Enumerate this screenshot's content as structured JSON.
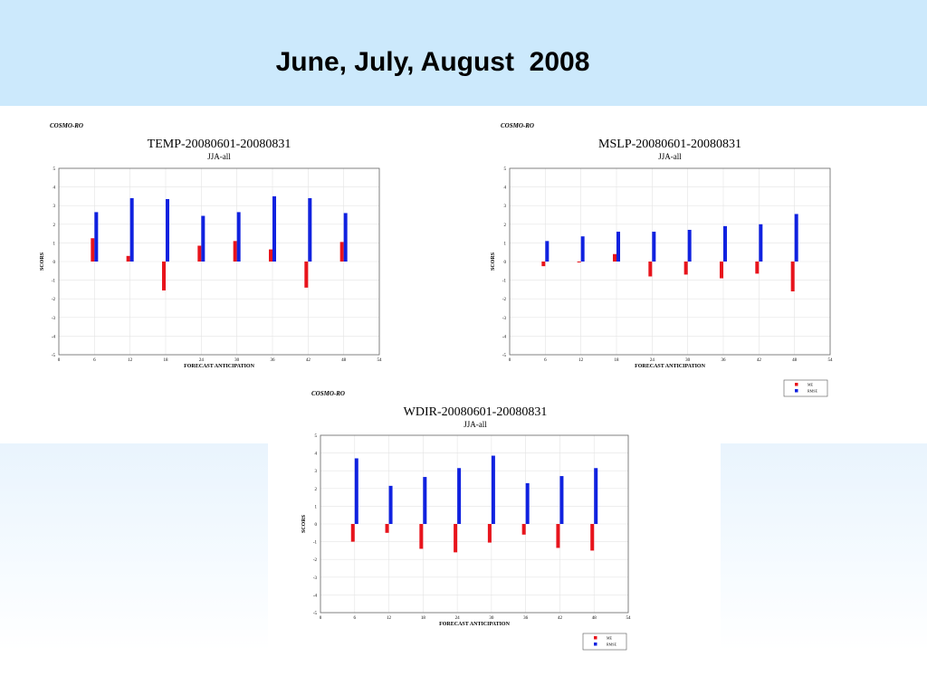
{
  "slide": {
    "title": "June, July, August  2008"
  },
  "colors": {
    "header_bg": "#cce9fc",
    "me": "#e8141c",
    "rmse": "#1022e0",
    "grid": "#e4e4e4"
  },
  "chart_data": [
    {
      "id": "temp",
      "type": "bar",
      "brand": "COSMO-RO",
      "title": "TEMP-20080601-20080831",
      "subtitle": "JJA-all",
      "xlabel": "FORECAST ANTICIPATION",
      "ylabel": "SCORS",
      "xlim": [
        0,
        54
      ],
      "ylim": [
        -5,
        5
      ],
      "xticks": [
        0,
        6,
        12,
        18,
        24,
        30,
        36,
        42,
        48,
        54
      ],
      "yticks": [
        5,
        4,
        3,
        2,
        1,
        0,
        -1,
        -2,
        -3,
        -4,
        -5
      ],
      "grid": true,
      "legend": null,
      "x": [
        6,
        12,
        18,
        24,
        30,
        36,
        42,
        48
      ],
      "series": [
        {
          "name": "ME",
          "color": "#e8141c",
          "values": [
            1.25,
            0.3,
            -1.55,
            0.85,
            1.1,
            0.65,
            -1.4,
            1.05
          ]
        },
        {
          "name": "RMSE",
          "color": "#1022e0",
          "values": [
            2.65,
            3.4,
            3.35,
            2.45,
            2.65,
            3.5,
            3.4,
            2.6
          ]
        }
      ]
    },
    {
      "id": "mslp",
      "type": "bar",
      "brand": "COSMO-RO",
      "title": "MSLP-20080601-20080831",
      "subtitle": "JJA-all",
      "xlabel": "FORECAST ANTICIPATION",
      "ylabel": "SCORS",
      "xlim": [
        0,
        54
      ],
      "ylim": [
        -5,
        5
      ],
      "xticks": [
        0,
        6,
        12,
        18,
        24,
        30,
        36,
        42,
        48,
        54
      ],
      "yticks": [
        5,
        4,
        3,
        2,
        1,
        0,
        -1,
        -2,
        -3,
        -4,
        -5
      ],
      "grid": true,
      "legend": "bottom-right",
      "x": [
        6,
        12,
        18,
        24,
        30,
        36,
        42,
        48
      ],
      "series": [
        {
          "name": "ME",
          "color": "#e8141c",
          "values": [
            -0.25,
            -0.05,
            0.4,
            -0.8,
            -0.7,
            -0.9,
            -0.65,
            -1.6
          ]
        },
        {
          "name": "RMSE",
          "color": "#1022e0",
          "values": [
            1.1,
            1.35,
            1.6,
            1.6,
            1.7,
            1.9,
            2.0,
            2.55
          ]
        }
      ]
    },
    {
      "id": "wdir",
      "type": "bar",
      "brand": "COSMO-RO",
      "title": "WDIR-20080601-20080831",
      "subtitle": "JJA-all",
      "xlabel": "FORECAST ANTICIPATION",
      "ylabel": "SCORS",
      "xlim": [
        0,
        54
      ],
      "ylim": [
        -5,
        5
      ],
      "xticks": [
        0,
        6,
        12,
        18,
        24,
        30,
        36,
        42,
        48,
        54
      ],
      "yticks": [
        5,
        4,
        3,
        2,
        1,
        0,
        -1,
        -2,
        -3,
        -4,
        -5
      ],
      "grid": true,
      "legend": "bottom-right",
      "x": [
        6,
        12,
        18,
        24,
        30,
        36,
        42,
        48
      ],
      "series": [
        {
          "name": "ME",
          "color": "#e8141c",
          "values": [
            -1.0,
            -0.5,
            -1.4,
            -1.6,
            -1.05,
            -0.6,
            -1.35,
            -1.5
          ]
        },
        {
          "name": "RMSE",
          "color": "#1022e0",
          "values": [
            3.7,
            2.15,
            2.65,
            3.15,
            3.85,
            2.3,
            2.7,
            3.15
          ]
        }
      ]
    }
  ]
}
